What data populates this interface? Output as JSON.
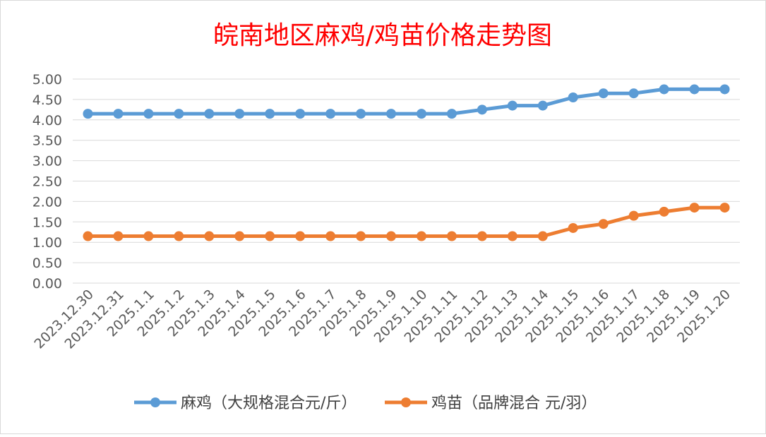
{
  "chart_data": {
    "type": "line",
    "title": "皖南地区麻鸡/鸡苗价格走势图",
    "title_color": "#FF0000",
    "categories": [
      "2023.12.30",
      "2023.12.31",
      "2025.1.1",
      "2025.1.2",
      "2025.1.3",
      "2025.1.4",
      "2025.1.5",
      "2025.1.6",
      "2025.1.7",
      "2025.1.8",
      "2025.1.9",
      "2025.1.10",
      "2025.1.11",
      "2025.1.12",
      "2025.1.13",
      "2025.1.14",
      "2025.1.15",
      "2025.1.16",
      "2025.1.17",
      "2025.1.18",
      "2025.1.19",
      "2025.1.20"
    ],
    "ylim": [
      0,
      5
    ],
    "y_ticks": [
      "0.00",
      "0.50",
      "1.00",
      "1.50",
      "2.00",
      "2.50",
      "3.00",
      "3.50",
      "4.00",
      "4.50",
      "5.00"
    ],
    "grid": true,
    "legend": "bottom",
    "series": [
      {
        "name": "麻鸡（大规格混合元/斤）",
        "color": "#5B9BD5",
        "values": [
          4.15,
          4.15,
          4.15,
          4.15,
          4.15,
          4.15,
          4.15,
          4.15,
          4.15,
          4.15,
          4.15,
          4.15,
          4.15,
          4.25,
          4.35,
          4.35,
          4.55,
          4.65,
          4.65,
          4.75,
          4.75,
          4.75
        ]
      },
      {
        "name": "鸡苗（品牌混合 元/羽）",
        "color": "#ED7D31",
        "values": [
          1.15,
          1.15,
          1.15,
          1.15,
          1.15,
          1.15,
          1.15,
          1.15,
          1.15,
          1.15,
          1.15,
          1.15,
          1.15,
          1.15,
          1.15,
          1.15,
          1.35,
          1.45,
          1.65,
          1.75,
          1.85,
          1.85
        ]
      }
    ]
  }
}
